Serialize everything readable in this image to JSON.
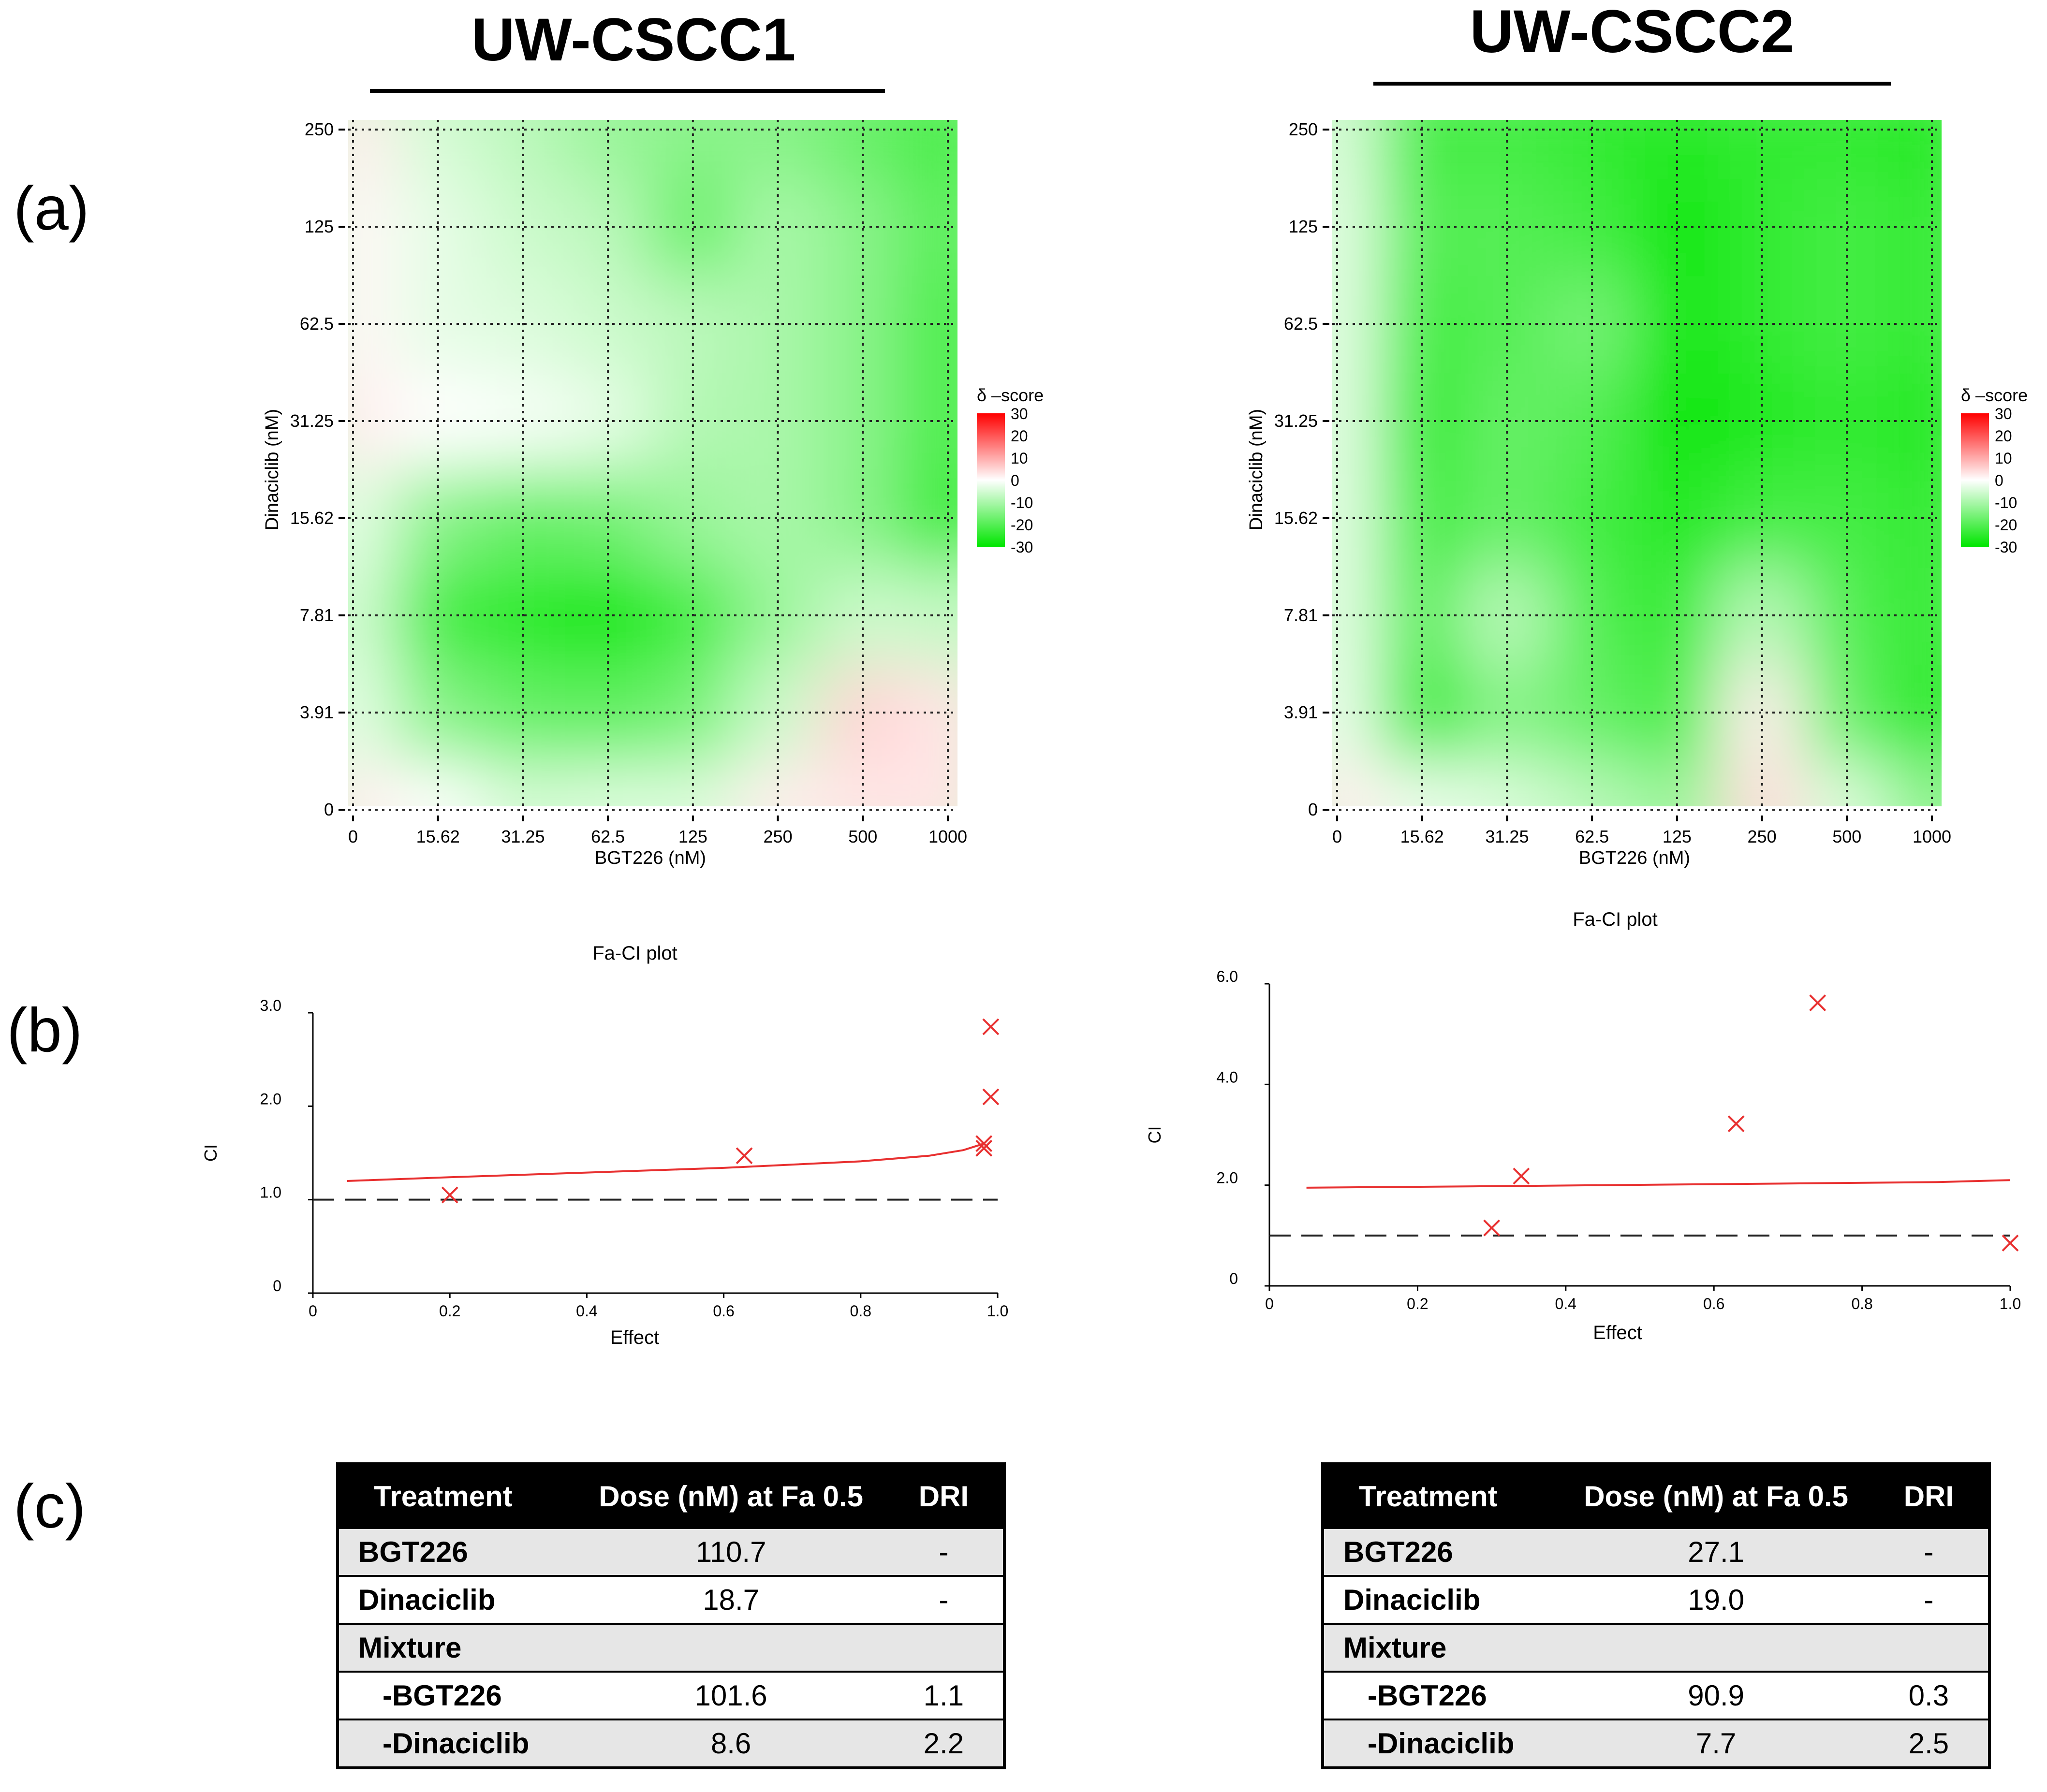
{
  "panels": {
    "left_title": "UW-CSCC1",
    "right_title": "UW-CSCC2",
    "label_a": "(a)",
    "label_b": "(b)",
    "label_c": "(c)"
  },
  "colors": {
    "synergy_max": "#ff0000",
    "neutral": "#ffffff",
    "antagonism_max": "#00e600",
    "fit_line": "#e83030",
    "grid": "#222222"
  },
  "chart_data": [
    {
      "type": "heatmap",
      "panel": "a-left",
      "title": "UW-CSCC1",
      "xlabel": "BGT226 (nM)",
      "ylabel": "Dinaciclib (nM)",
      "x_ticks": [
        "0",
        "15.62",
        "31.25",
        "62.5",
        "125",
        "250",
        "500",
        "1000"
      ],
      "y_ticks": [
        "0",
        "3.91",
        "7.81",
        "15.62",
        "31.25",
        "62.5",
        "125",
        "250"
      ],
      "legend_title": "δ –score",
      "legend_ticks": [
        "30",
        "20",
        "10",
        "0",
        "-10",
        "-20",
        "-30"
      ],
      "legend_range": [
        -30,
        30
      ],
      "grid": true,
      "values": [
        [
          2,
          0,
          -5,
          -4,
          -4,
          2,
          3,
          3
        ],
        [
          -3,
          -14,
          -18,
          -19,
          -16,
          -6,
          5,
          3
        ],
        [
          -5,
          -22,
          -25,
          -28,
          -22,
          -12,
          -6,
          -7
        ],
        [
          -3,
          -14,
          -18,
          -17,
          -12,
          -10,
          -14,
          -24
        ],
        [
          2,
          0,
          -1,
          -3,
          -9,
          -10,
          -14,
          -22
        ],
        [
          1,
          -3,
          -4,
          -6,
          -8,
          -10,
          -14,
          -22
        ],
        [
          1,
          -3,
          -6,
          -8,
          -18,
          -10,
          -14,
          -20
        ],
        [
          2,
          -5,
          -8,
          -12,
          -14,
          -14,
          -18,
          -22
        ]
      ]
    },
    {
      "type": "heatmap",
      "panel": "a-right",
      "title": "UW-CSCC2",
      "xlabel": "BGT226 (nM)",
      "ylabel": "Dinaciclib (nM)",
      "x_ticks": [
        "0",
        "15.62",
        "31.25",
        "62.5",
        "125",
        "250",
        "500",
        "1000"
      ],
      "y_ticks": [
        "0",
        "3.91",
        "7.81",
        "15.62",
        "31.25",
        "62.5",
        "125",
        "250"
      ],
      "legend_title": "δ –score",
      "legend_ticks": [
        "30",
        "20",
        "10",
        "0",
        "-10",
        "-20",
        "-30"
      ],
      "legend_range": [
        -30,
        30
      ],
      "grid": true,
      "values": [
        [
          2,
          -2,
          -4,
          -8,
          -12,
          4,
          -4,
          -14
        ],
        [
          -2,
          -24,
          -14,
          -18,
          -22,
          2,
          -18,
          -26
        ],
        [
          -3,
          -20,
          -8,
          -20,
          -24,
          -8,
          -20,
          -24
        ],
        [
          -3,
          -22,
          -18,
          -22,
          -26,
          -22,
          -22,
          -24
        ],
        [
          -3,
          -24,
          -18,
          -20,
          -30,
          -26,
          -24,
          -26
        ],
        [
          -3,
          -22,
          -20,
          -16,
          -28,
          -24,
          -22,
          -24
        ],
        [
          -3,
          -20,
          -20,
          -22,
          -28,
          -24,
          -22,
          -24
        ],
        [
          -4,
          -22,
          -22,
          -24,
          -26,
          -24,
          -24,
          -26
        ]
      ]
    },
    {
      "type": "scatter",
      "panel": "b-left",
      "title": "Fa-CI plot",
      "xlabel": "Effect",
      "ylabel": "CI",
      "xlim": [
        0,
        1.0
      ],
      "ylim": [
        0,
        3.0
      ],
      "x_ticks": [
        "0",
        "0.2",
        "0.4",
        "0.6",
        "0.8",
        "1.0"
      ],
      "y_ticks": [
        "0",
        "1.0",
        "2.0",
        "3.0"
      ],
      "reference_line": 1.0,
      "points": [
        {
          "x": 0.2,
          "y": 1.05
        },
        {
          "x": 0.63,
          "y": 1.47
        },
        {
          "x": 0.98,
          "y": 1.55
        },
        {
          "x": 0.98,
          "y": 1.6
        },
        {
          "x": 0.99,
          "y": 2.1
        },
        {
          "x": 0.99,
          "y": 2.85
        }
      ],
      "fit_curve": {
        "x": [
          0.05,
          0.2,
          0.4,
          0.6,
          0.8,
          0.9,
          0.95,
          0.98
        ],
        "y": [
          1.2,
          1.24,
          1.29,
          1.34,
          1.41,
          1.47,
          1.53,
          1.6
        ]
      }
    },
    {
      "type": "scatter",
      "panel": "b-right",
      "title": "Fa-CI plot",
      "xlabel": "Effect",
      "ylabel": "CI",
      "xlim": [
        0,
        1.0
      ],
      "ylim": [
        0,
        6.0
      ],
      "x_ticks": [
        "0",
        "0.2",
        "0.4",
        "0.6",
        "0.8",
        "1.0"
      ],
      "y_ticks": [
        "0",
        "2.0",
        "4.0",
        "6.0"
      ],
      "reference_line": 1.0,
      "points": [
        {
          "x": 0.3,
          "y": 1.15
        },
        {
          "x": 0.34,
          "y": 2.18
        },
        {
          "x": 0.63,
          "y": 3.22
        },
        {
          "x": 0.74,
          "y": 5.62
        },
        {
          "x": 1.0,
          "y": 0.85
        }
      ],
      "fit_curve": {
        "x": [
          0.05,
          0.3,
          0.6,
          0.9,
          1.0
        ],
        "y": [
          1.95,
          1.98,
          2.02,
          2.06,
          2.1
        ]
      }
    }
  ],
  "tables": {
    "left": {
      "headers": [
        "Treatment",
        "Dose (nM) at Fa 0.5",
        "DRI"
      ],
      "rows": [
        [
          "BGT226",
          "110.7",
          "-"
        ],
        [
          "Dinaciclib",
          "18.7",
          "-"
        ],
        [
          "Mixture",
          "",
          ""
        ],
        [
          "-BGT226",
          "101.6",
          "1.1"
        ],
        [
          "-Dinaciclib",
          "8.6",
          "2.2"
        ]
      ]
    },
    "right": {
      "headers": [
        "Treatment",
        "Dose (nM) at Fa 0.5",
        "DRI"
      ],
      "rows": [
        [
          "BGT226",
          "27.1",
          "-"
        ],
        [
          "Dinaciclib",
          "19.0",
          "-"
        ],
        [
          "Mixture",
          "",
          ""
        ],
        [
          "-BGT226",
          "90.9",
          "0.3"
        ],
        [
          "-Dinaciclib",
          "7.7",
          "2.5"
        ]
      ]
    }
  }
}
